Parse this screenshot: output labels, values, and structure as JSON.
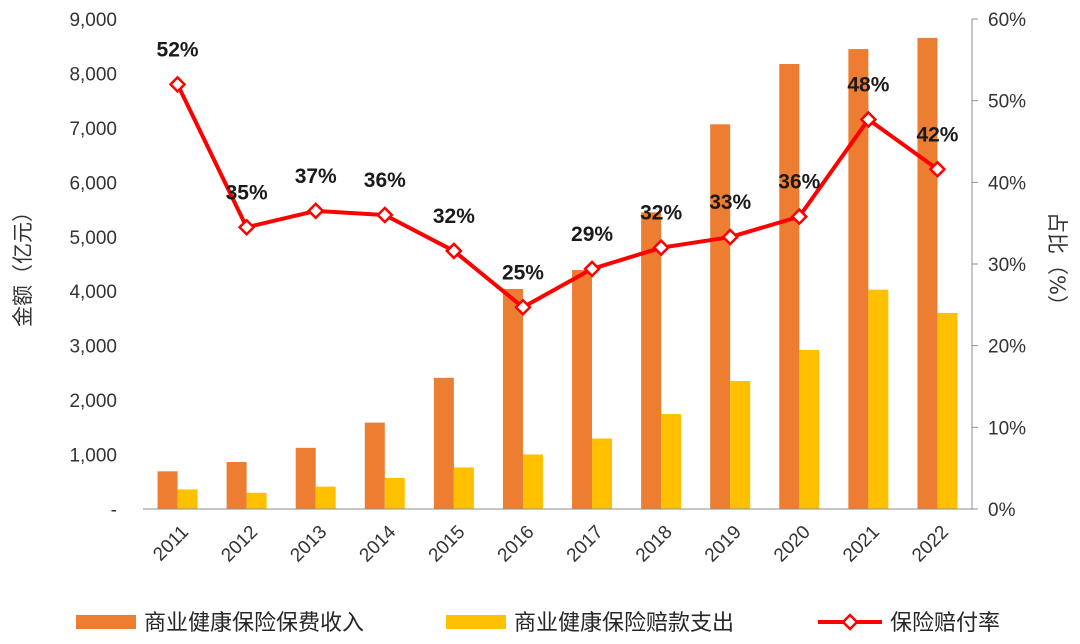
{
  "chart_data": {
    "type": "bar+line",
    "categories": [
      "2011",
      "2012",
      "2013",
      "2014",
      "2015",
      "2016",
      "2017",
      "2018",
      "2019",
      "2020",
      "2021",
      "2022"
    ],
    "series": [
      {
        "name": "商业健康保险保费收入",
        "type": "bar",
        "axis": "left",
        "color": "#ED7D31",
        "values": [
          692,
          863,
          1123,
          1587,
          2410,
          4042,
          4389,
          5448,
          7066,
          8173,
          8447,
          8653
        ]
      },
      {
        "name": "商业健康保险赔款支出",
        "type": "bar",
        "axis": "left",
        "color": "#FFC000",
        "values": [
          360,
          298,
          411,
          571,
          763,
          1001,
          1295,
          1744,
          2351,
          2921,
          4029,
          3600
        ]
      },
      {
        "name": "保险赔付率",
        "type": "line",
        "axis": "right",
        "color": "#FF0000",
        "values": [
          52,
          34.5,
          36.5,
          36,
          31.6,
          24.7,
          29.4,
          32,
          33.3,
          35.8,
          47.7,
          41.6
        ],
        "labels": [
          "52%",
          "35%",
          "37%",
          "36%",
          "32%",
          "25%",
          "29%",
          "32%",
          "33%",
          "36%",
          "48%",
          "42%"
        ]
      }
    ],
    "ylabel": "金额（亿元）",
    "y2label": "占比（%）",
    "ylim": [
      0,
      9000
    ],
    "y2lim": [
      0,
      60
    ],
    "yticks": [
      "-",
      "1,000",
      "2,000",
      "3,000",
      "4,000",
      "5,000",
      "6,000",
      "7,000",
      "8,000",
      "9,000"
    ],
    "y2ticks": [
      "0%",
      "10%",
      "20%",
      "30%",
      "40%",
      "50%",
      "60%"
    ],
    "legend_position": "bottom",
    "grid": false
  }
}
